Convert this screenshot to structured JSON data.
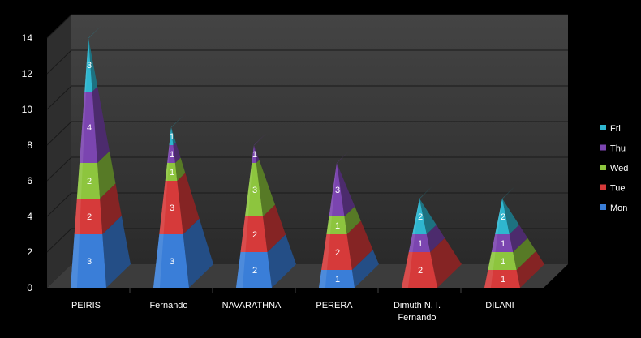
{
  "chart_data": {
    "type": "bar",
    "subtype": "stacked-pyramid-3d",
    "categories": [
      "PEIRIS",
      "Fernando",
      "NAVARATHNA",
      "PERERA",
      "Dimuth N. I. Fernando",
      "DILANI"
    ],
    "series": [
      {
        "name": "Mon",
        "color": "#3a7ed8",
        "values": [
          3,
          3,
          2,
          1,
          0,
          0
        ]
      },
      {
        "name": "Tue",
        "color": "#d63a3a",
        "values": [
          2,
          3,
          2,
          2,
          2,
          1
        ]
      },
      {
        "name": "Wed",
        "color": "#8dc53e",
        "values": [
          2,
          1,
          3,
          1,
          0,
          1
        ]
      },
      {
        "name": "Thu",
        "color": "#7b45b0",
        "values": [
          4,
          1,
          1,
          3,
          1,
          1
        ]
      },
      {
        "name": "Fri",
        "color": "#2fb6cf",
        "values": [
          3,
          1,
          0,
          0,
          2,
          2
        ]
      }
    ],
    "ylim": [
      0,
      14
    ],
    "yticks": [
      "0",
      "2",
      "4",
      "6",
      "8",
      "10",
      "12",
      "14"
    ],
    "grid": true,
    "legend_position": "right",
    "background": "#000000",
    "wall_color": "#3a3a3a"
  }
}
